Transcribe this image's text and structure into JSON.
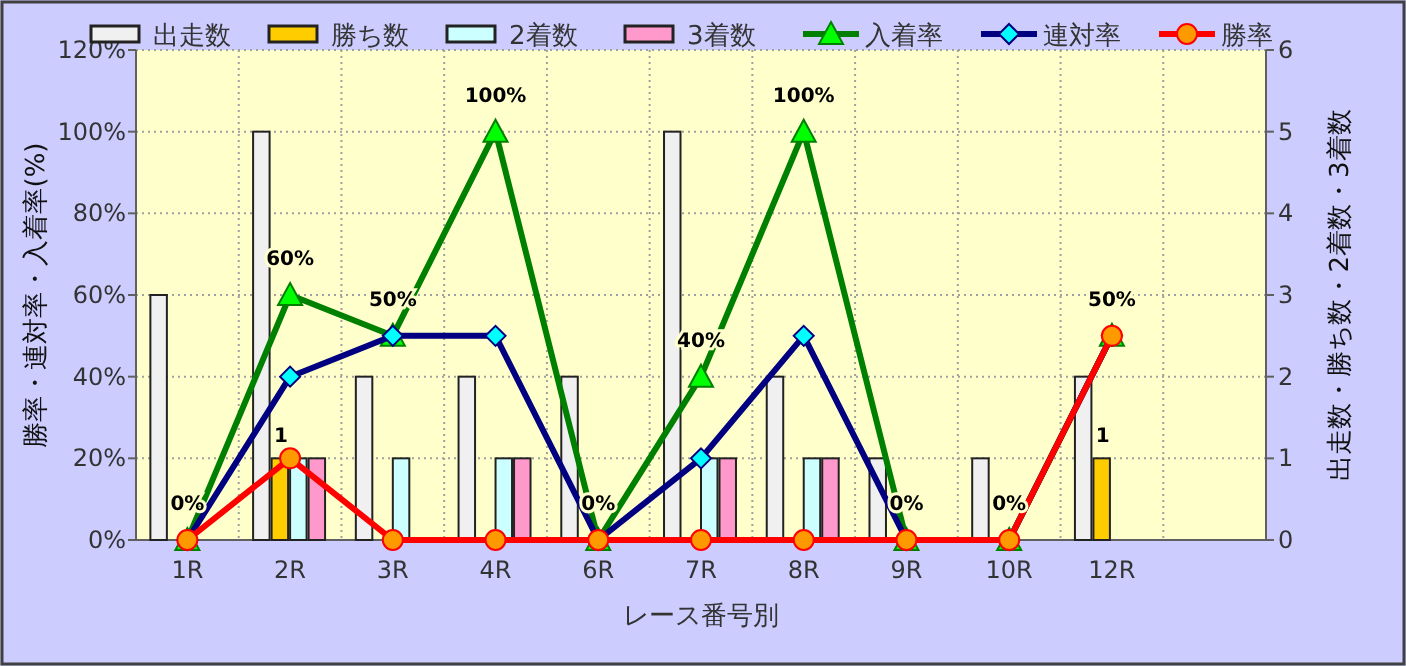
{
  "chart_data": {
    "type": "bar",
    "xlabel": "レース番号別",
    "ylabel": "勝率・連対率・入着率(%)",
    "y2label": "出走数・勝ち数・2着数・3着数",
    "categories": [
      "1R",
      "2R",
      "3R",
      "4R",
      "6R",
      "7R",
      "8R",
      "9R",
      "10R",
      "12R",
      null
    ],
    "series": [
      {
        "name": "出走数",
        "axis": "y2",
        "color": "#f0f0f0",
        "values": [
          3,
          5,
          2,
          2,
          2,
          5,
          2,
          1,
          1,
          2,
          null
        ]
      },
      {
        "name": "勝ち数",
        "axis": "y2",
        "color": "#ffcc00",
        "values": [
          0,
          1,
          0,
          0,
          0,
          0,
          0,
          0,
          0,
          1,
          null
        ],
        "value_labels": [
          null,
          "1",
          null,
          null,
          null,
          null,
          null,
          null,
          null,
          "1",
          null
        ]
      },
      {
        "name": "2着数",
        "axis": "y2",
        "color": "#ccffff",
        "values": [
          0,
          1,
          1,
          1,
          0,
          1,
          1,
          0,
          0,
          0,
          null
        ]
      },
      {
        "name": "3着数",
        "axis": "y2",
        "color": "#ff99cc",
        "values": [
          0,
          1,
          0,
          1,
          0,
          1,
          1,
          0,
          0,
          0,
          null
        ]
      },
      {
        "name": "入着率",
        "type": "line",
        "color": "#008000",
        "marker": "triangle",
        "values": [
          0,
          60,
          50,
          100,
          0,
          40,
          100,
          0,
          0,
          50,
          null
        ],
        "value_labels": [
          "0%",
          "60%",
          "50%",
          "100%",
          "0%",
          "40%",
          "100%",
          "0%",
          "0%",
          "50%",
          null
        ]
      },
      {
        "name": "連対率",
        "type": "line",
        "color": "#000080",
        "marker": "diamond",
        "values": [
          0,
          40,
          50,
          50,
          0,
          20,
          50,
          0,
          0,
          50,
          null
        ]
      },
      {
        "name": "勝率",
        "type": "line",
        "color": "#ff0000",
        "marker": "circle",
        "values": [
          0,
          20,
          0,
          0,
          0,
          0,
          0,
          0,
          0,
          50,
          null
        ]
      }
    ],
    "ylim": [
      0,
      120
    ],
    "yticks": [
      {
        "value": 0,
        "label": "0%"
      },
      {
        "value": 20,
        "label": "20%"
      },
      {
        "value": 40,
        "label": "40%"
      },
      {
        "value": 60,
        "label": "60%"
      },
      {
        "value": 80,
        "label": "80%"
      },
      {
        "value": 100,
        "label": "100%"
      },
      {
        "value": 120,
        "label": "120%"
      }
    ],
    "y2lim": [
      0,
      6
    ],
    "y2ticks": [
      0,
      1,
      2,
      3,
      4,
      5,
      6
    ],
    "grid": true,
    "legend": "top"
  }
}
